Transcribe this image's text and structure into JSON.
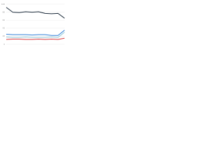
{
  "chart_data": {
    "type": "line",
    "categories": [
      null,
      null,
      null,
      null,
      null,
      null,
      null,
      null,
      null,
      null
    ],
    "series": [
      {
        "color": "#1b2a3a",
        "values": [
          92,
          80,
          79,
          81,
          80,
          81,
          77,
          76,
          77,
          65
        ]
      },
      {
        "color": "#2f7fd8",
        "values": [
          25,
          24,
          24,
          24,
          23,
          24,
          24,
          22,
          22,
          35
        ]
      },
      {
        "color": "#8fc8d8",
        "values": [
          18,
          17,
          17,
          18,
          17,
          17,
          17,
          18,
          17,
          30
        ]
      },
      {
        "color": "#d8353a",
        "values": [
          12,
          13,
          13,
          12,
          12,
          13,
          12,
          13,
          12,
          15
        ]
      }
    ],
    "ylim": [
      0,
      100
    ],
    "yticks": [
      0,
      20,
      40,
      60,
      80,
      100
    ],
    "grid": true
  }
}
